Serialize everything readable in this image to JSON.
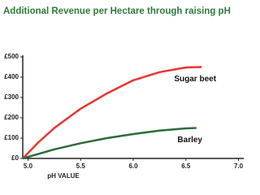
{
  "chart_data": {
    "type": "line",
    "title": "Additional Revenue per Hectare through raising pH",
    "x_label": "pH VALUE",
    "xlim": [
      4.95,
      7.05
    ],
    "xticks": [
      {
        "value": 5,
        "label": "5.0"
      },
      5.5,
      {
        "value": 6,
        "label": "6.0"
      },
      6.5,
      {
        "value": 7,
        "label": "7.0"
      }
    ],
    "ylim": [
      0,
      500
    ],
    "yticks": [
      {
        "value": 0,
        "label": "£0"
      },
      {
        "value": 100,
        "label": "£100"
      },
      {
        "value": 200,
        "label": "£200"
      },
      {
        "value": 300,
        "label": "£300"
      },
      {
        "value": 400,
        "label": "£400"
      },
      {
        "value": 500,
        "label": "£500"
      }
    ],
    "series": [
      {
        "name": "Sugar beet",
        "color": "#e8352e",
        "x": [
          4.95,
          5.1,
          5.25,
          5.5,
          5.75,
          6.0,
          6.25,
          6.5,
          6.65
        ],
        "values": [
          0,
          80,
          150,
          245,
          320,
          385,
          425,
          448,
          450
        ]
      },
      {
        "name": "Barley",
        "color": "#2e6b3a",
        "x": [
          4.95,
          5.25,
          5.5,
          5.75,
          6.0,
          6.25,
          6.5,
          6.6
        ],
        "values": [
          0,
          45,
          75,
          100,
          120,
          137,
          148,
          150
        ]
      }
    ]
  }
}
